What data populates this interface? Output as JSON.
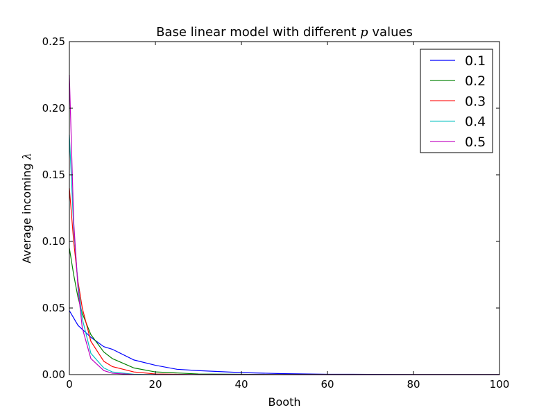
{
  "chart_data": {
    "type": "line",
    "title": "Base linear model with different",
    "title_symbol": "p",
    "title_suffix": "values",
    "xlabel": "Booth",
    "ylabel": "Average incoming",
    "ylabel_symbol": "λ",
    "xlim": [
      0,
      100
    ],
    "ylim": [
      0,
      0.25
    ],
    "x_ticks": [
      0,
      20,
      40,
      60,
      80,
      100
    ],
    "x_tick_labels": [
      "0",
      "20",
      "40",
      "60",
      "80",
      "100"
    ],
    "y_ticks": [
      0,
      0.05,
      0.1,
      0.15,
      0.2,
      0.25
    ],
    "y_tick_labels": [
      "0.00",
      "0.05",
      "0.10",
      "0.15",
      "0.20",
      "0.25"
    ],
    "grid": false,
    "legend_position": "top-right",
    "series": [
      {
        "name": "0.1",
        "color": "#0000ff",
        "p": 0.1,
        "points": [
          [
            0,
            0.048
          ],
          [
            2,
            0.037
          ],
          [
            5,
            0.028
          ],
          [
            8,
            0.021
          ],
          [
            10,
            0.019
          ],
          [
            15,
            0.011
          ],
          [
            20,
            0.007
          ],
          [
            25,
            0.004
          ],
          [
            30,
            0.003
          ],
          [
            40,
            0.0015
          ],
          [
            50,
            0.0007
          ],
          [
            60,
            0.0003
          ],
          [
            80,
            0.0001
          ],
          [
            100,
            0.0
          ]
        ]
      },
      {
        "name": "0.2",
        "color": "#008000",
        "p": 0.2,
        "points": [
          [
            0,
            0.095
          ],
          [
            1,
            0.075
          ],
          [
            2,
            0.058
          ],
          [
            3,
            0.046
          ],
          [
            5,
            0.03
          ],
          [
            8,
            0.017
          ],
          [
            10,
            0.012
          ],
          [
            15,
            0.005
          ],
          [
            20,
            0.002
          ],
          [
            30,
            0.0005
          ],
          [
            50,
            0.0
          ],
          [
            100,
            0.0
          ]
        ]
      },
      {
        "name": "0.3",
        "color": "#ff0000",
        "p": 0.3,
        "points": [
          [
            0,
            0.14
          ],
          [
            1,
            0.1
          ],
          [
            2,
            0.07
          ],
          [
            3,
            0.05
          ],
          [
            5,
            0.025
          ],
          [
            8,
            0.01
          ],
          [
            10,
            0.006
          ],
          [
            15,
            0.002
          ],
          [
            20,
            0.0005
          ],
          [
            30,
            0.0
          ],
          [
            100,
            0.0
          ]
        ]
      },
      {
        "name": "0.4",
        "color": "#00bfbf",
        "p": 0.4,
        "points": [
          [
            0,
            0.18
          ],
          [
            1,
            0.11
          ],
          [
            2,
            0.068
          ],
          [
            3,
            0.042
          ],
          [
            5,
            0.016
          ],
          [
            8,
            0.005
          ],
          [
            10,
            0.002
          ],
          [
            15,
            0.0003
          ],
          [
            20,
            0.0
          ],
          [
            100,
            0.0
          ]
        ]
      },
      {
        "name": "0.5",
        "color": "#bf00bf",
        "p": 0.5,
        "points": [
          [
            0,
            0.225
          ],
          [
            1,
            0.115
          ],
          [
            2,
            0.065
          ],
          [
            3,
            0.035
          ],
          [
            5,
            0.012
          ],
          [
            8,
            0.003
          ],
          [
            10,
            0.001
          ],
          [
            15,
            0.0001
          ],
          [
            20,
            0.0
          ],
          [
            100,
            0.0
          ]
        ]
      }
    ]
  }
}
